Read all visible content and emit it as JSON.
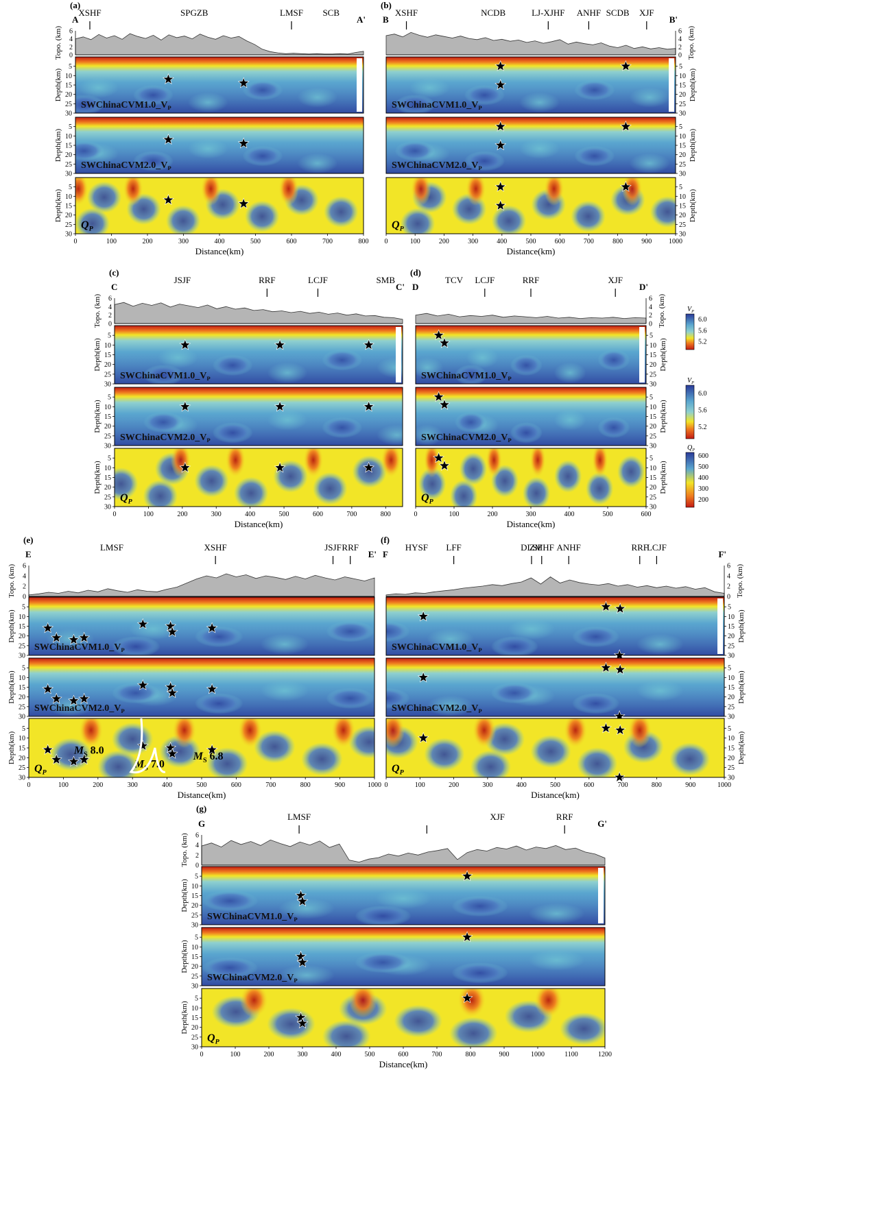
{
  "figure": {
    "panels": [
      {
        "label": "(a)",
        "end_left": "A",
        "end_right": "A'",
        "dist_max": 800,
        "xticks": [
          0,
          100,
          200,
          300,
          400,
          500,
          600,
          700,
          800
        ],
        "faults": [
          {
            "name": "XSHF",
            "km": 40,
            "tick": true
          },
          {
            "name": "SPGZB",
            "km": 330,
            "tick": false
          },
          {
            "name": "LMSF",
            "km": 600,
            "tick": true
          },
          {
            "name": "SCB",
            "km": 710,
            "tick": false
          }
        ],
        "topo": [
          4.0,
          4.5,
          3.8,
          5.1,
          4.2,
          4.8,
          3.9,
          5.3,
          4.6,
          4.1,
          4.9,
          3.7,
          5.0,
          4.3,
          4.7,
          4.0,
          5.2,
          4.4,
          3.9,
          4.8,
          4.2,
          4.6,
          3.5,
          2.6,
          1.4,
          0.8,
          0.5,
          0.3,
          0.4,
          0.3,
          0.2,
          0.3,
          0.2,
          0.2,
          0.3,
          0.2,
          0.6,
          0.9
        ],
        "stars": [
          [
            258,
            12
          ],
          [
            467,
            14
          ]
        ],
        "vp1_label": "SWChinaCVM1.0_V",
        "vp2_label": "SWChinaCVM2.0_V",
        "qp_label": "Q"
      },
      {
        "label": "(b)",
        "end_left": "B",
        "end_right": "B'",
        "dist_max": 1000,
        "xticks": [
          0,
          100,
          200,
          300,
          400,
          500,
          600,
          700,
          800,
          900,
          1000
        ],
        "faults": [
          {
            "name": "XSHF",
            "km": 70,
            "tick": true
          },
          {
            "name": "NCDB",
            "km": 370,
            "tick": false
          },
          {
            "name": "LJ-XJHF",
            "km": 560,
            "tick": true
          },
          {
            "name": "ANHF",
            "km": 700,
            "tick": true
          },
          {
            "name": "SCDB",
            "km": 800,
            "tick": false
          },
          {
            "name": "XJF",
            "km": 900,
            "tick": true
          }
        ],
        "topo": [
          4.8,
          5.2,
          4.5,
          5.6,
          4.9,
          4.4,
          5.0,
          4.6,
          4.2,
          4.7,
          4.1,
          3.8,
          4.3,
          3.6,
          3.9,
          3.4,
          3.7,
          3.1,
          3.5,
          2.9,
          3.3,
          3.8,
          2.7,
          3.2,
          2.8,
          2.5,
          3.0,
          2.2,
          1.8,
          2.4,
          1.6,
          2.0,
          1.5,
          1.8,
          1.4,
          1.6
        ],
        "stars": [
          [
            395,
            5
          ],
          [
            395,
            15
          ],
          [
            828,
            5
          ]
        ],
        "vp1_label": "SWChinaCVM1.0_V",
        "vp2_label": "SWChinaCVM2.0_V",
        "qp_label": "Q"
      },
      {
        "label": "(c)",
        "end_left": "C",
        "end_right": "C'",
        "dist_max": 850,
        "xticks": [
          0,
          100,
          200,
          300,
          400,
          500,
          600,
          700,
          800
        ],
        "faults": [
          {
            "name": "JSJF",
            "km": 200,
            "tick": false
          },
          {
            "name": "RRF",
            "km": 450,
            "tick": true
          },
          {
            "name": "LCJF",
            "km": 600,
            "tick": true
          },
          {
            "name": "SMB",
            "km": 800,
            "tick": false
          }
        ],
        "topo": [
          4.5,
          5.0,
          4.1,
          4.8,
          4.3,
          4.9,
          3.9,
          4.6,
          4.2,
          3.8,
          4.4,
          3.5,
          4.0,
          3.4,
          3.7,
          3.1,
          3.3,
          2.8,
          3.0,
          2.6,
          2.9,
          2.4,
          2.7,
          2.2,
          2.5,
          2.0,
          2.3,
          1.8,
          1.9,
          1.5,
          1.4,
          1.0
        ],
        "stars": [
          [
            208,
            10
          ],
          [
            488,
            10
          ],
          [
            750,
            10
          ]
        ],
        "vp1_label": "SWChinaCVM1.0_V",
        "vp2_label": "SWChinaCVM2.0_V",
        "qp_label": "Q"
      },
      {
        "label": "(d)",
        "end_left": "D",
        "end_right": "D'",
        "dist_max": 600,
        "xticks": [
          0,
          100,
          200,
          300,
          400,
          500,
          600
        ],
        "faults": [
          {
            "name": "TCV",
            "km": 100,
            "tick": false
          },
          {
            "name": "LCJF",
            "km": 180,
            "tick": true
          },
          {
            "name": "RRF",
            "km": 300,
            "tick": true
          },
          {
            "name": "XJF",
            "km": 520,
            "tick": true
          }
        ],
        "topo": [
          2.0,
          2.4,
          1.8,
          2.2,
          1.6,
          1.9,
          1.7,
          2.0,
          1.5,
          1.8,
          1.6,
          1.4,
          1.7,
          1.3,
          1.5,
          1.2,
          1.4,
          1.3,
          1.5,
          1.2,
          1.4,
          1.3
        ],
        "stars": [
          [
            60,
            5
          ],
          [
            75,
            9
          ]
        ],
        "vp1_label": "SWChinaCVM1.0_V",
        "vp2_label": "SWChinaCVM2.0_V",
        "qp_label": "Q"
      },
      {
        "label": "(e)",
        "end_left": "E",
        "end_right": "E'",
        "dist_max": 1000,
        "xticks": [
          0,
          100,
          200,
          300,
          400,
          500,
          600,
          700,
          800,
          900,
          1000
        ],
        "faults": [
          {
            "name": "LMSF",
            "km": 240,
            "tick": false
          },
          {
            "name": "XSHF",
            "km": 540,
            "tick": true
          },
          {
            "name": "JSJF",
            "km": 880,
            "tick": true
          },
          {
            "name": "RRF",
            "km": 930,
            "tick": true
          }
        ],
        "topo": [
          0.3,
          0.5,
          0.8,
          0.6,
          1.0,
          0.7,
          1.2,
          0.9,
          1.5,
          1.1,
          0.8,
          1.3,
          1.0,
          0.9,
          1.4,
          1.8,
          2.6,
          3.4,
          4.0,
          3.6,
          4.4,
          3.8,
          4.2,
          3.5,
          4.0,
          3.7,
          3.3,
          3.9,
          3.4,
          4.1,
          3.6,
          3.2,
          3.8,
          3.4,
          3.0,
          3.6
        ],
        "stars": [
          [
            55,
            16
          ],
          [
            80,
            21
          ],
          [
            130,
            22
          ],
          [
            160,
            21
          ],
          [
            330,
            14
          ],
          [
            410,
            15
          ],
          [
            415,
            18
          ],
          [
            530,
            16
          ]
        ],
        "annotations": [
          {
            "text": "M",
            "sub": "S",
            "mag": "8.0",
            "km": 210,
            "depth": 18
          },
          {
            "text": "M",
            "sub": "S",
            "mag": "7.0",
            "km": 385,
            "depth": 25
          },
          {
            "text": "M",
            "sub": "S",
            "mag": "6.8",
            "km": 555,
            "depth": 21
          }
        ],
        "vp1_label": "SWChinaCVM1.0_V",
        "vp2_label": "SWChinaCVM2.0_V",
        "qp_label": "Q"
      },
      {
        "label": "(f)",
        "end_left": "F",
        "end_right": "F'",
        "dist_max": 1000,
        "xticks": [
          0,
          100,
          200,
          300,
          400,
          500,
          600,
          700,
          800,
          900,
          1000
        ],
        "faults": [
          {
            "name": "HYSF",
            "km": 90,
            "tick": false
          },
          {
            "name": "LFF",
            "km": 200,
            "tick": true
          },
          {
            "name": "DLSF",
            "km": 430,
            "tick": true
          },
          {
            "name": "ZMHF",
            "km": 460,
            "tick": true
          },
          {
            "name": "ANHF",
            "km": 540,
            "tick": true
          },
          {
            "name": "RRF",
            "km": 750,
            "tick": true
          },
          {
            "name": "LCJF",
            "km": 800,
            "tick": true
          }
        ],
        "topo": [
          0.3,
          0.5,
          0.4,
          0.7,
          0.6,
          0.9,
          1.1,
          1.3,
          1.6,
          1.8,
          2.0,
          2.3,
          2.1,
          2.5,
          2.8,
          3.6,
          2.4,
          3.8,
          2.6,
          3.2,
          2.7,
          2.4,
          2.2,
          2.5,
          2.0,
          2.3,
          1.8,
          2.1,
          1.7,
          2.0,
          1.6,
          1.9,
          1.4,
          1.7,
          0.9,
          0.6
        ],
        "stars": [
          [
            110,
            10
          ],
          [
            650,
            5
          ],
          [
            692,
            6
          ],
          [
            690,
            30
          ]
        ],
        "vp1_label": "SWChinaCVM1.0_V",
        "vp2_label": "SWChinaCVM2.0_V",
        "qp_label": "Q"
      },
      {
        "label": "(g)",
        "end_left": "G",
        "end_right": "G'",
        "dist_max": 1200,
        "xticks": [
          0,
          100,
          200,
          300,
          400,
          500,
          600,
          700,
          800,
          900,
          1000,
          1100,
          1200
        ],
        "faults": [
          {
            "name": "LMSF",
            "km": 290,
            "tick": true
          },
          {
            "name": "",
            "km": 670,
            "tick": true
          },
          {
            "name": "XJF",
            "km": 880,
            "tick": false
          },
          {
            "name": "RRF",
            "km": 1080,
            "tick": true
          }
        ],
        "topo": [
          3.8,
          4.4,
          3.6,
          4.9,
          4.1,
          4.7,
          3.9,
          5.0,
          4.3,
          3.7,
          4.6,
          4.0,
          4.8,
          3.5,
          4.2,
          1.0,
          0.6,
          1.2,
          1.5,
          2.2,
          1.8,
          2.4,
          2.0,
          2.6,
          2.9,
          3.3,
          1.1,
          2.5,
          3.1,
          2.8,
          3.5,
          3.2,
          3.8,
          3.0,
          3.6,
          3.3,
          3.9,
          3.1,
          3.4,
          2.6,
          2.2,
          1.4
        ],
        "stars": [
          [
            295,
            15
          ],
          [
            300,
            18
          ],
          [
            790,
            5
          ]
        ],
        "vp1_label": "SWChinaCVM1.0_V",
        "vp2_label": "SWChinaCVM2.0_V",
        "qp_label": "Q"
      }
    ],
    "labels": {
      "distance": "Distance(km)",
      "depth": "Depth(km)",
      "topo": "Topo. (km)",
      "vp_sub": "P",
      "qp_sub": "P"
    },
    "colorbars": [
      {
        "title": "V",
        "sub": "P",
        "ticks": [
          "6.0",
          "5.6",
          "5.2"
        ]
      },
      {
        "title": "V",
        "sub": "P",
        "ticks": [
          "6.0",
          "5.6",
          "5.2"
        ]
      },
      {
        "title": "Q",
        "sub": "P",
        "ticks": [
          "600",
          "500",
          "400",
          "300",
          "200"
        ]
      }
    ],
    "colors": {
      "red": "#c21a14",
      "orange": "#ef7a1f",
      "yellow": "#f2e527",
      "cyan": "#6fc3d3",
      "lightblue": "#5aa6cf",
      "blue": "#3a64b0",
      "darkblue": "#2a3a98",
      "topo": "#b5b5b5"
    }
  }
}
